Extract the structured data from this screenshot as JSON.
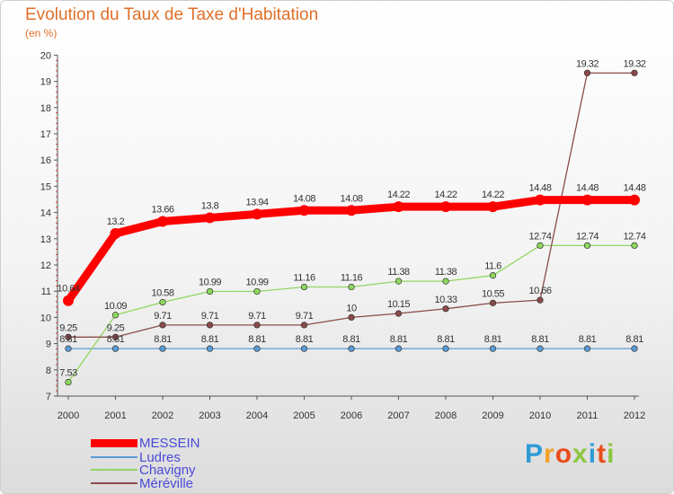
{
  "header": {
    "title": "Evolution du Taux de Taxe d'Habitation",
    "subtitle": "(en %)"
  },
  "logo": {
    "text": "Proxiti",
    "colors": [
      "#2f9bd6",
      "#f4a127",
      "#e94e1b",
      "#8cc63f",
      "#2f9bd6",
      "#e94e1b",
      "#8cc63f"
    ]
  },
  "chart_data": {
    "type": "line",
    "title": "Evolution du Taux de Taxe d'Habitation",
    "ylabel": "(en %)",
    "xlabel": "",
    "x": [
      "2000",
      "2001",
      "2002",
      "2003",
      "2004",
      "2005",
      "2006",
      "2007",
      "2008",
      "2009",
      "2010",
      "2011",
      "2012"
    ],
    "ylim": [
      7,
      20
    ],
    "yticks": [
      "7",
      "8",
      "9",
      "10",
      "11",
      "12",
      "13",
      "14",
      "15",
      "16",
      "17",
      "18",
      "19",
      "20"
    ],
    "grid": false,
    "legend_position": "bottom-left",
    "series": [
      {
        "name": "MESSEIN",
        "color": "#ff0000",
        "values": [
          10.64,
          13.2,
          13.66,
          13.8,
          13.94,
          14.08,
          14.08,
          14.22,
          14.22,
          14.22,
          14.48,
          14.48,
          14.48
        ],
        "labels": [
          "10.64",
          "13.2",
          "13.66",
          "13.8",
          "13.94",
          "14.08",
          "14.08",
          "14.22",
          "14.22",
          "14.22",
          "14.48",
          "14.48",
          "14.48"
        ]
      },
      {
        "name": "Ludres",
        "color": "#5b9bd5",
        "values": [
          8.81,
          8.81,
          8.81,
          8.81,
          8.81,
          8.81,
          8.81,
          8.81,
          8.81,
          8.81,
          8.81,
          8.81,
          8.81
        ],
        "labels": [
          "8.81",
          "8.81",
          "8.81",
          "8.81",
          "8.81",
          "8.81",
          "8.81",
          "8.81",
          "8.81",
          "8.81",
          "8.81",
          "8.81",
          "8.81"
        ]
      },
      {
        "name": "Chavigny",
        "color": "#8fd760",
        "values": [
          7.53,
          10.09,
          10.58,
          10.99,
          10.99,
          11.16,
          11.16,
          11.38,
          11.38,
          11.6,
          12.74,
          12.74,
          12.74
        ],
        "labels": [
          "7.53",
          "10.09",
          "10.58",
          "10.99",
          "10.99",
          "11.16",
          "11.16",
          "11.38",
          "11.38",
          "11.6",
          "12.74",
          "12.74",
          "12.74"
        ]
      },
      {
        "name": "Méréville",
        "color": "#8b4a4a",
        "values": [
          9.25,
          9.25,
          9.71,
          9.71,
          9.71,
          9.71,
          10,
          10.15,
          10.33,
          10.55,
          10.66,
          19.32,
          19.32
        ],
        "labels": [
          "9.25",
          "9.25",
          "9.71",
          "9.71",
          "9.71",
          "9.71",
          "10",
          "10.15",
          "10.33",
          "10.55",
          "10.66",
          "19.32",
          "19.32"
        ]
      }
    ]
  }
}
